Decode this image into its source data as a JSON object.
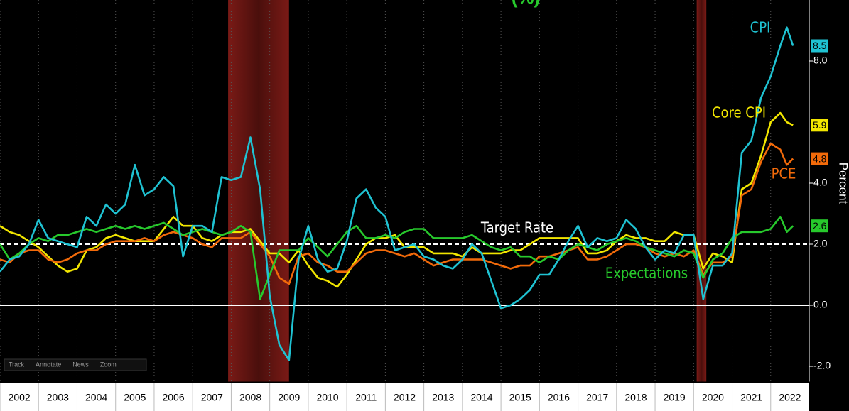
{
  "chart_data": {
    "type": "line",
    "title": "(%)",
    "y_label": "Percent",
    "x": [
      2002,
      2002.25,
      2002.5,
      2002.75,
      2003,
      2003.25,
      2003.5,
      2003.75,
      2004,
      2004.25,
      2004.5,
      2004.75,
      2005,
      2005.25,
      2005.5,
      2005.75,
      2006,
      2006.25,
      2006.5,
      2006.75,
      2007,
      2007.25,
      2007.5,
      2007.75,
      2008,
      2008.25,
      2008.5,
      2008.75,
      2009,
      2009.25,
      2009.5,
      2009.75,
      2010,
      2010.25,
      2010.5,
      2010.75,
      2011,
      2011.25,
      2011.5,
      2011.75,
      2012,
      2012.25,
      2012.5,
      2012.75,
      2013,
      2013.25,
      2013.5,
      2013.75,
      2014,
      2014.25,
      2014.5,
      2014.75,
      2015,
      2015.25,
      2015.5,
      2015.75,
      2016,
      2016.25,
      2016.5,
      2016.75,
      2017,
      2017.25,
      2017.5,
      2017.75,
      2018,
      2018.25,
      2018.5,
      2018.75,
      2019,
      2019.25,
      2019.5,
      2019.75,
      2020,
      2020.25,
      2020.5,
      2020.75,
      2021,
      2021.25,
      2021.5,
      2021.75,
      2022,
      2022.25,
      2022.42,
      2022.58
    ],
    "series": [
      {
        "name": "CPI",
        "color": "#1fc2d2",
        "values": [
          1.1,
          1.5,
          1.6,
          2.0,
          2.8,
          2.2,
          2.1,
          2.0,
          1.9,
          2.9,
          2.6,
          3.3,
          3.0,
          3.3,
          4.6,
          3.6,
          3.8,
          4.2,
          3.9,
          1.6,
          2.6,
          2.6,
          2.4,
          4.2,
          4.1,
          4.2,
          5.5,
          3.8,
          0.3,
          -1.3,
          -1.8,
          1.5,
          2.6,
          1.5,
          1.1,
          1.2,
          2.1,
          3.5,
          3.8,
          3.2,
          2.9,
          1.8,
          1.9,
          2.0,
          1.6,
          1.5,
          1.3,
          1.2,
          1.5,
          2.0,
          1.7,
          0.8,
          -0.1,
          0.0,
          0.2,
          0.5,
          1.0,
          1.0,
          1.5,
          2.1,
          2.6,
          1.9,
          2.2,
          2.1,
          2.2,
          2.8,
          2.5,
          1.9,
          1.5,
          1.8,
          1.7,
          2.3,
          2.3,
          0.2,
          1.3,
          1.3,
          1.7,
          5.0,
          5.4,
          6.8,
          7.5,
          8.5,
          9.1,
          8.5
        ]
      },
      {
        "name": "Core CPI",
        "color": "#f2e600",
        "values": [
          2.6,
          2.4,
          2.3,
          2.1,
          1.9,
          1.6,
          1.3,
          1.1,
          1.2,
          1.8,
          1.9,
          2.2,
          2.3,
          2.2,
          2.1,
          2.1,
          2.1,
          2.5,
          2.9,
          2.6,
          2.6,
          2.2,
          2.1,
          2.3,
          2.4,
          2.4,
          2.5,
          2.1,
          1.7,
          1.7,
          1.4,
          1.8,
          1.3,
          0.9,
          0.8,
          0.6,
          1.0,
          1.5,
          2.0,
          2.2,
          2.2,
          2.3,
          1.9,
          1.9,
          1.9,
          1.7,
          1.7,
          1.7,
          1.6,
          1.9,
          1.7,
          1.7,
          1.7,
          1.8,
          1.8,
          2.0,
          2.2,
          2.2,
          2.2,
          2.2,
          2.2,
          1.7,
          1.7,
          1.8,
          2.1,
          2.3,
          2.2,
          2.2,
          2.1,
          2.1,
          2.4,
          2.3,
          2.3,
          1.2,
          1.7,
          1.6,
          1.4,
          3.8,
          4.0,
          4.9,
          6.0,
          6.3,
          6.0,
          5.9
        ]
      },
      {
        "name": "PCE",
        "color": "#f26a0a",
        "values": [
          1.5,
          1.4,
          1.7,
          1.8,
          1.8,
          1.5,
          1.4,
          1.5,
          1.7,
          1.8,
          1.8,
          2.0,
          2.1,
          2.1,
          2.1,
          2.2,
          2.1,
          2.3,
          2.4,
          2.3,
          2.2,
          2.0,
          1.9,
          2.2,
          2.2,
          2.2,
          2.4,
          2.0,
          1.6,
          0.9,
          0.7,
          1.6,
          1.7,
          1.4,
          1.3,
          1.1,
          1.1,
          1.4,
          1.7,
          1.8,
          1.8,
          1.7,
          1.6,
          1.7,
          1.5,
          1.3,
          1.4,
          1.5,
          1.5,
          1.5,
          1.5,
          1.4,
          1.3,
          1.2,
          1.3,
          1.3,
          1.6,
          1.6,
          1.7,
          1.8,
          1.9,
          1.5,
          1.5,
          1.6,
          1.8,
          2.0,
          2.0,
          1.9,
          1.7,
          1.6,
          1.7,
          1.6,
          1.8,
          1.0,
          1.4,
          1.4,
          1.6,
          3.6,
          3.8,
          4.7,
          5.3,
          5.1,
          4.6,
          4.8
        ]
      },
      {
        "name": "Expectations",
        "color": "#27c92c",
        "values": [
          2.0,
          1.5,
          1.7,
          2.0,
          2.2,
          2.1,
          2.3,
          2.3,
          2.4,
          2.5,
          2.4,
          2.5,
          2.6,
          2.5,
          2.6,
          2.5,
          2.6,
          2.7,
          2.5,
          2.3,
          2.4,
          2.5,
          2.4,
          2.3,
          2.4,
          2.6,
          2.4,
          0.2,
          1.0,
          1.8,
          1.8,
          1.8,
          2.2,
          1.9,
          1.6,
          2.0,
          2.4,
          2.6,
          2.2,
          2.2,
          2.3,
          2.2,
          2.4,
          2.5,
          2.5,
          2.2,
          2.2,
          2.2,
          2.2,
          2.3,
          2.1,
          1.9,
          1.8,
          1.9,
          1.6,
          1.6,
          1.4,
          1.6,
          1.5,
          1.8,
          2.0,
          1.9,
          1.8,
          2.0,
          2.1,
          2.2,
          2.1,
          1.9,
          1.8,
          1.7,
          1.6,
          1.8,
          1.7,
          0.9,
          1.5,
          1.7,
          2.2,
          2.4,
          2.4,
          2.4,
          2.5,
          2.9,
          2.4,
          2.6
        ]
      }
    ],
    "target_rate": 2.0,
    "annotations": [
      {
        "text": "CPI",
        "color": "#1fc2d2"
      },
      {
        "text": "Core CPI",
        "color": "#f2e600"
      },
      {
        "text": "PCE",
        "color": "#f26a0a"
      },
      {
        "text": "Target Rate",
        "color": "#ffffff"
      },
      {
        "text": "Expectations",
        "color": "#27c92c"
      }
    ],
    "shaded_periods": [
      {
        "start": 2007.92,
        "end": 2009.5
      },
      {
        "start": 2020.08,
        "end": 2020.33
      }
    ],
    "xlim": [
      2002,
      2023
    ],
    "xticks": [
      2002,
      2003,
      2004,
      2005,
      2006,
      2007,
      2008,
      2009,
      2010,
      2011,
      2012,
      2013,
      2014,
      2015,
      2016,
      2017,
      2018,
      2019,
      2020,
      2021,
      2022
    ],
    "ylim": [
      -2.5,
      10
    ],
    "yticks": [
      {
        "value": -2,
        "label": "-2.0"
      },
      {
        "value": 0,
        "label": "0.0"
      },
      {
        "value": 2,
        "label": "2.0"
      },
      {
        "value": 4,
        "label": "4.0"
      },
      {
        "value": 8,
        "label": "8.0"
      }
    ],
    "grid": true,
    "toolbar": [
      "Track",
      "Annotate",
      "News",
      "Zoom"
    ]
  }
}
